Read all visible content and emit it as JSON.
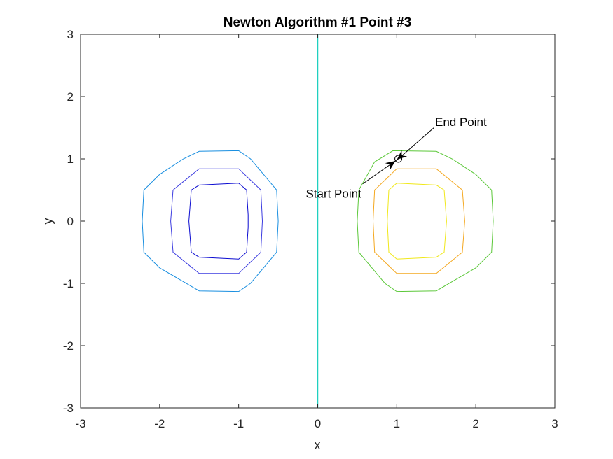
{
  "chart_data": {
    "type": "line",
    "title": "Newton Algorithm #1 Point #3",
    "xlabel": "x",
    "ylabel": "y",
    "xlim": [
      -3,
      3
    ],
    "ylim": [
      -3,
      3
    ],
    "xticks": [
      -3,
      -2,
      -1,
      0,
      1,
      2,
      3
    ],
    "yticks": [
      -3,
      -2,
      -1,
      0,
      1,
      2,
      3
    ],
    "grid": false,
    "contours": [
      {
        "level": 1,
        "color": "#0b0bd0",
        "points": [
          [
            -1.5,
            0.58
          ],
          [
            -1,
            0.61
          ],
          [
            -0.9,
            0.5
          ],
          [
            -0.88,
            0.1
          ],
          [
            -0.88,
            -0.1
          ],
          [
            -0.9,
            -0.5
          ],
          [
            -1,
            -0.61
          ],
          [
            -1.5,
            -0.58
          ],
          [
            -1.6,
            -0.5
          ],
          [
            -1.63,
            0
          ],
          [
            -1.6,
            0.5
          ]
        ]
      },
      {
        "level": 2,
        "color": "#3c3ce0",
        "points": [
          [
            -1.5,
            0.84
          ],
          [
            -1,
            0.84
          ],
          [
            -0.72,
            0.5
          ],
          [
            -0.7,
            0
          ],
          [
            -0.72,
            -0.5
          ],
          [
            -1,
            -0.84
          ],
          [
            -1.5,
            -0.84
          ],
          [
            -1.83,
            -0.5
          ],
          [
            -1.86,
            0
          ],
          [
            -1.83,
            0.5
          ]
        ]
      },
      {
        "level": 3,
        "color": "#1a8fe0",
        "points": [
          [
            -1.5,
            1.12
          ],
          [
            -1,
            1.13
          ],
          [
            -0.85,
            1
          ],
          [
            -0.52,
            0.5
          ],
          [
            -0.5,
            0
          ],
          [
            -0.52,
            -0.5
          ],
          [
            -0.85,
            -1
          ],
          [
            -1,
            -1.13
          ],
          [
            -1.5,
            -1.12
          ],
          [
            -2,
            -0.75
          ],
          [
            -2.2,
            -0.5
          ],
          [
            -2.22,
            0
          ],
          [
            -2.2,
            0.5
          ],
          [
            -2,
            0.75
          ],
          [
            -1.7,
            1
          ]
        ]
      },
      {
        "level": 4,
        "color": "#1fd0c0",
        "points": [
          [
            0,
            3
          ],
          [
            0,
            -3
          ]
        ],
        "open": true
      },
      {
        "level": 5,
        "color": "#5cc83a",
        "points": [
          [
            0.95,
            1.13
          ],
          [
            1.5,
            1.12
          ],
          [
            1.7,
            1
          ],
          [
            2,
            0.75
          ],
          [
            2.2,
            0.5
          ],
          [
            2.22,
            0
          ],
          [
            2.2,
            -0.5
          ],
          [
            2,
            -0.75
          ],
          [
            1.5,
            -1.12
          ],
          [
            1,
            -1.13
          ],
          [
            0.85,
            -1
          ],
          [
            0.52,
            -0.5
          ],
          [
            0.5,
            0
          ],
          [
            0.52,
            0.5
          ],
          [
            0.72,
            0.95
          ]
        ]
      },
      {
        "level": 6,
        "color": "#f4a820",
        "points": [
          [
            1,
            0.84
          ],
          [
            1.5,
            0.84
          ],
          [
            1.83,
            0.5
          ],
          [
            1.86,
            0
          ],
          [
            1.83,
            -0.5
          ],
          [
            1.5,
            -0.84
          ],
          [
            1,
            -0.84
          ],
          [
            0.72,
            -0.5
          ],
          [
            0.7,
            0
          ],
          [
            0.72,
            0.5
          ]
        ]
      },
      {
        "level": 7,
        "color": "#f0e81a",
        "points": [
          [
            1,
            0.61
          ],
          [
            1.5,
            0.58
          ],
          [
            1.6,
            0.5
          ],
          [
            1.63,
            0
          ],
          [
            1.6,
            -0.5
          ],
          [
            1.5,
            -0.58
          ],
          [
            1,
            -0.61
          ],
          [
            0.9,
            -0.5
          ],
          [
            0.88,
            0
          ],
          [
            0.9,
            0.5
          ]
        ]
      }
    ],
    "path": {
      "color": "#000000",
      "points": [
        [
          0.57,
          0.6
        ],
        [
          1.02,
          1.0
        ]
      ]
    },
    "annotations": [
      {
        "text": "Start Point",
        "x": 0.57,
        "y": 0.6,
        "anchor": "end",
        "dx": -2,
        "dy": 0.4
      },
      {
        "text": "End Point",
        "x": 1.02,
        "y": 1.0,
        "anchor": "start",
        "dx": 0.5,
        "dy": 0.55
      }
    ]
  }
}
